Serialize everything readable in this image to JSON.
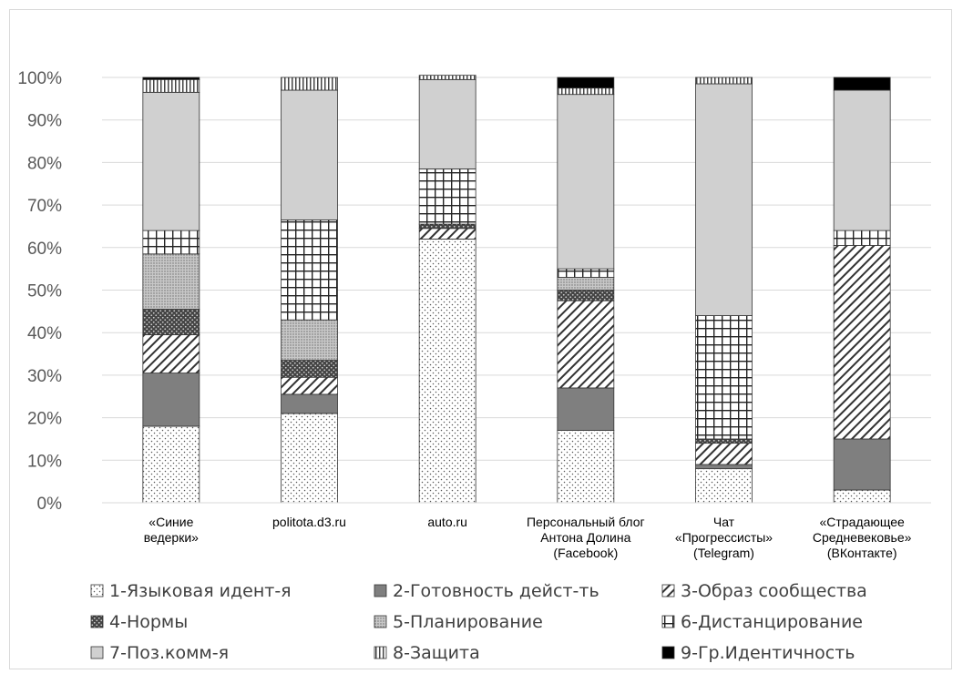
{
  "chart_data": {
    "type": "bar",
    "stacked": true,
    "normalized": true,
    "ylim": [
      0,
      100
    ],
    "y_ticks": [
      "0%",
      "10%",
      "20%",
      "30%",
      "40%",
      "50%",
      "60%",
      "70%",
      "80%",
      "90%",
      "100%"
    ],
    "categories": [
      [
        "«Синие",
        "ведерки»"
      ],
      [
        "politota.d3.ru"
      ],
      [
        "auto.ru"
      ],
      [
        "Персональный блог",
        "Антона Долина",
        "(Facebook)"
      ],
      [
        "Чат",
        "«Прогрессисты»",
        "(Telegram)"
      ],
      [
        "«Страдающее",
        "Средневековье»",
        "(ВКонтакте)"
      ]
    ],
    "series": [
      {
        "name": "1-Языковая идент-я",
        "pattern": "dots",
        "values": [
          18,
          21,
          62,
          17,
          8,
          3
        ]
      },
      {
        "name": "2-Готовность дейст-ть",
        "pattern": "dark-gray",
        "values": [
          12.5,
          4.5,
          0,
          10,
          1,
          12
        ]
      },
      {
        "name": "3-Образ сообщества",
        "pattern": "diagonal",
        "values": [
          9,
          4,
          2.5,
          20.5,
          5,
          45.5
        ]
      },
      {
        "name": "4-Нормы",
        "pattern": "crosshatch",
        "values": [
          6,
          4,
          1,
          2.5,
          1,
          0
        ]
      },
      {
        "name": "5-Планирование",
        "pattern": "light-dots",
        "values": [
          13,
          9.5,
          0,
          3,
          0,
          0
        ]
      },
      {
        "name": "6-Дистанцирование",
        "pattern": "grid",
        "values": [
          5.5,
          23.5,
          13,
          2,
          29,
          3.5
        ]
      },
      {
        "name": "7-Поз.комм-я",
        "pattern": "light-gray",
        "values": [
          32.5,
          30.5,
          21,
          41,
          54.5,
          33
        ]
      },
      {
        "name": "8-Защита",
        "pattern": "vertical",
        "values": [
          3,
          3,
          1,
          1.5,
          1.5,
          0
        ]
      },
      {
        "name": "9-Гр.Идентичность",
        "pattern": "black",
        "values": [
          0.5,
          0,
          0,
          2.5,
          0,
          3
        ]
      }
    ],
    "grid": true,
    "legend_position": "bottom"
  }
}
